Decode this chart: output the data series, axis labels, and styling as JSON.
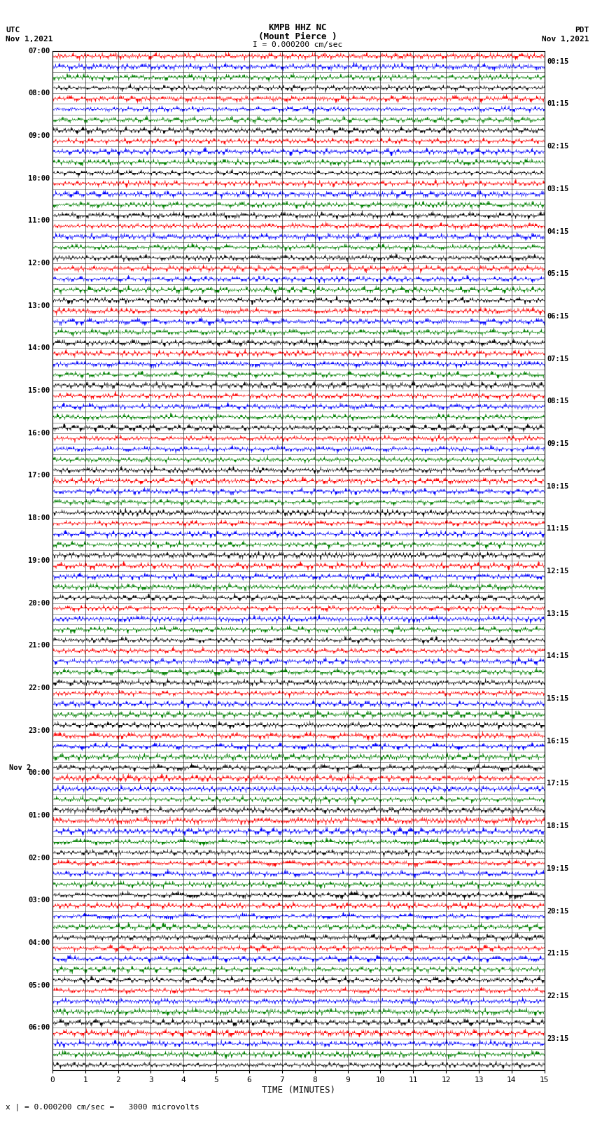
{
  "title_line1": "KMPB HHZ NC",
  "title_line2": "(Mount Pierce )",
  "title_line3": "I = 0.000200 cm/sec",
  "label_utc": "UTC",
  "label_pdt": "PDT",
  "label_date_left": "Nov 1,2021",
  "label_date_right": "Nov 1,2021",
  "label_nov2_left": "Nov 2",
  "xlabel": "TIME (MINUTES)",
  "footer": "x | = 0.000200 cm/sec =   3000 microvolts",
  "left_times": [
    "07:00",
    "08:00",
    "09:00",
    "10:00",
    "11:00",
    "12:00",
    "13:00",
    "14:00",
    "15:00",
    "16:00",
    "17:00",
    "18:00",
    "19:00",
    "20:00",
    "21:00",
    "22:00",
    "23:00",
    "00:00",
    "01:00",
    "02:00",
    "03:00",
    "04:00",
    "05:00",
    "06:00"
  ],
  "right_times": [
    "00:15",
    "01:15",
    "02:15",
    "03:15",
    "04:15",
    "05:15",
    "06:15",
    "07:15",
    "08:15",
    "09:15",
    "10:15",
    "11:15",
    "12:15",
    "13:15",
    "14:15",
    "15:15",
    "16:15",
    "17:15",
    "18:15",
    "19:15",
    "20:15",
    "21:15",
    "22:15",
    "23:15"
  ],
  "n_rows": 96,
  "n_cols": 3000,
  "colors": [
    "red",
    "blue",
    "green",
    "black"
  ],
  "bg_color": "white",
  "seed": 42
}
